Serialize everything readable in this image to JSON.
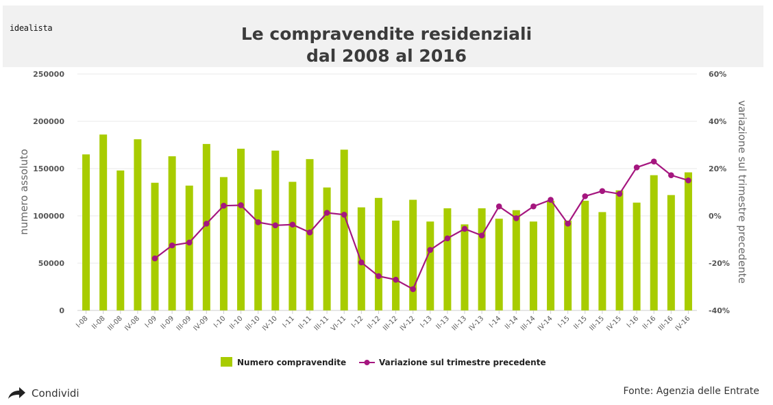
{
  "header": {
    "brand": "idealista",
    "title_line1": "Le compravendite residenziali",
    "title_line2": "dal 2008 al 2016"
  },
  "footer": {
    "share_label": "Condividi",
    "source": "Fonte: Agenzia delle Entrate"
  },
  "colors": {
    "bar": "#a8cc00",
    "line": "#a5167f",
    "grid": "#e8e8e8",
    "axis_text": "#555555"
  },
  "chart_data": {
    "type": "bar",
    "title": "Le compravendite residenziali dal 2008 al 2016",
    "ylabel": "numero assoluto",
    "y2label": "variazione sul trimestre precedente",
    "ylim": [
      0,
      250000
    ],
    "y2lim": [
      -0.4,
      0.6
    ],
    "yticks": [
      "250000",
      "200000",
      "150000",
      "100000",
      "50000",
      "0"
    ],
    "y2ticks": [
      "60%",
      "40%",
      "20%",
      "0%",
      "-20%",
      "-40%"
    ],
    "categories": [
      "I-08",
      "II-08",
      "III-08",
      "IV-08",
      "I-09",
      "II-09",
      "III-09",
      "IV-09",
      "I-10",
      "II-10",
      "III-10",
      "IV-10",
      "I-11",
      "II-11",
      "III-11",
      "VI-11",
      "I-12",
      "II-12",
      "III-12",
      "IV-12",
      "I-13",
      "II-13",
      "III-13",
      "IV-13",
      "I-14",
      "II-14",
      "III-14",
      "IV-14",
      "I-15",
      "II-15",
      "III-15",
      "IV-15",
      "I-16",
      "II-16",
      "III-16",
      "IV-16"
    ],
    "series": [
      {
        "name": "Numero compravendite",
        "type": "bar",
        "values": [
          165000,
          186000,
          148000,
          181000,
          135000,
          163000,
          132000,
          176000,
          141000,
          171000,
          128000,
          169000,
          136000,
          160000,
          130000,
          170000,
          109000,
          119000,
          95000,
          117000,
          94000,
          108000,
          91000,
          108000,
          97000,
          106000,
          94000,
          116000,
          95000,
          116000,
          104000,
          127000,
          114000,
          143000,
          122000,
          146000
        ]
      },
      {
        "name": "Variazione sul trimestre precedente",
        "type": "line",
        "values": [
          null,
          null,
          null,
          null,
          -0.18,
          -0.125,
          -0.113,
          -0.033,
          0.043,
          0.045,
          -0.027,
          -0.04,
          -0.037,
          -0.07,
          0.013,
          0.005,
          -0.197,
          -0.255,
          -0.27,
          -0.31,
          -0.144,
          -0.095,
          -0.055,
          -0.083,
          0.04,
          -0.01,
          0.04,
          0.068,
          -0.033,
          0.083,
          0.105,
          0.093,
          0.205,
          0.23,
          0.172,
          0.15
        ]
      }
    ],
    "legend": "bottom-center"
  }
}
